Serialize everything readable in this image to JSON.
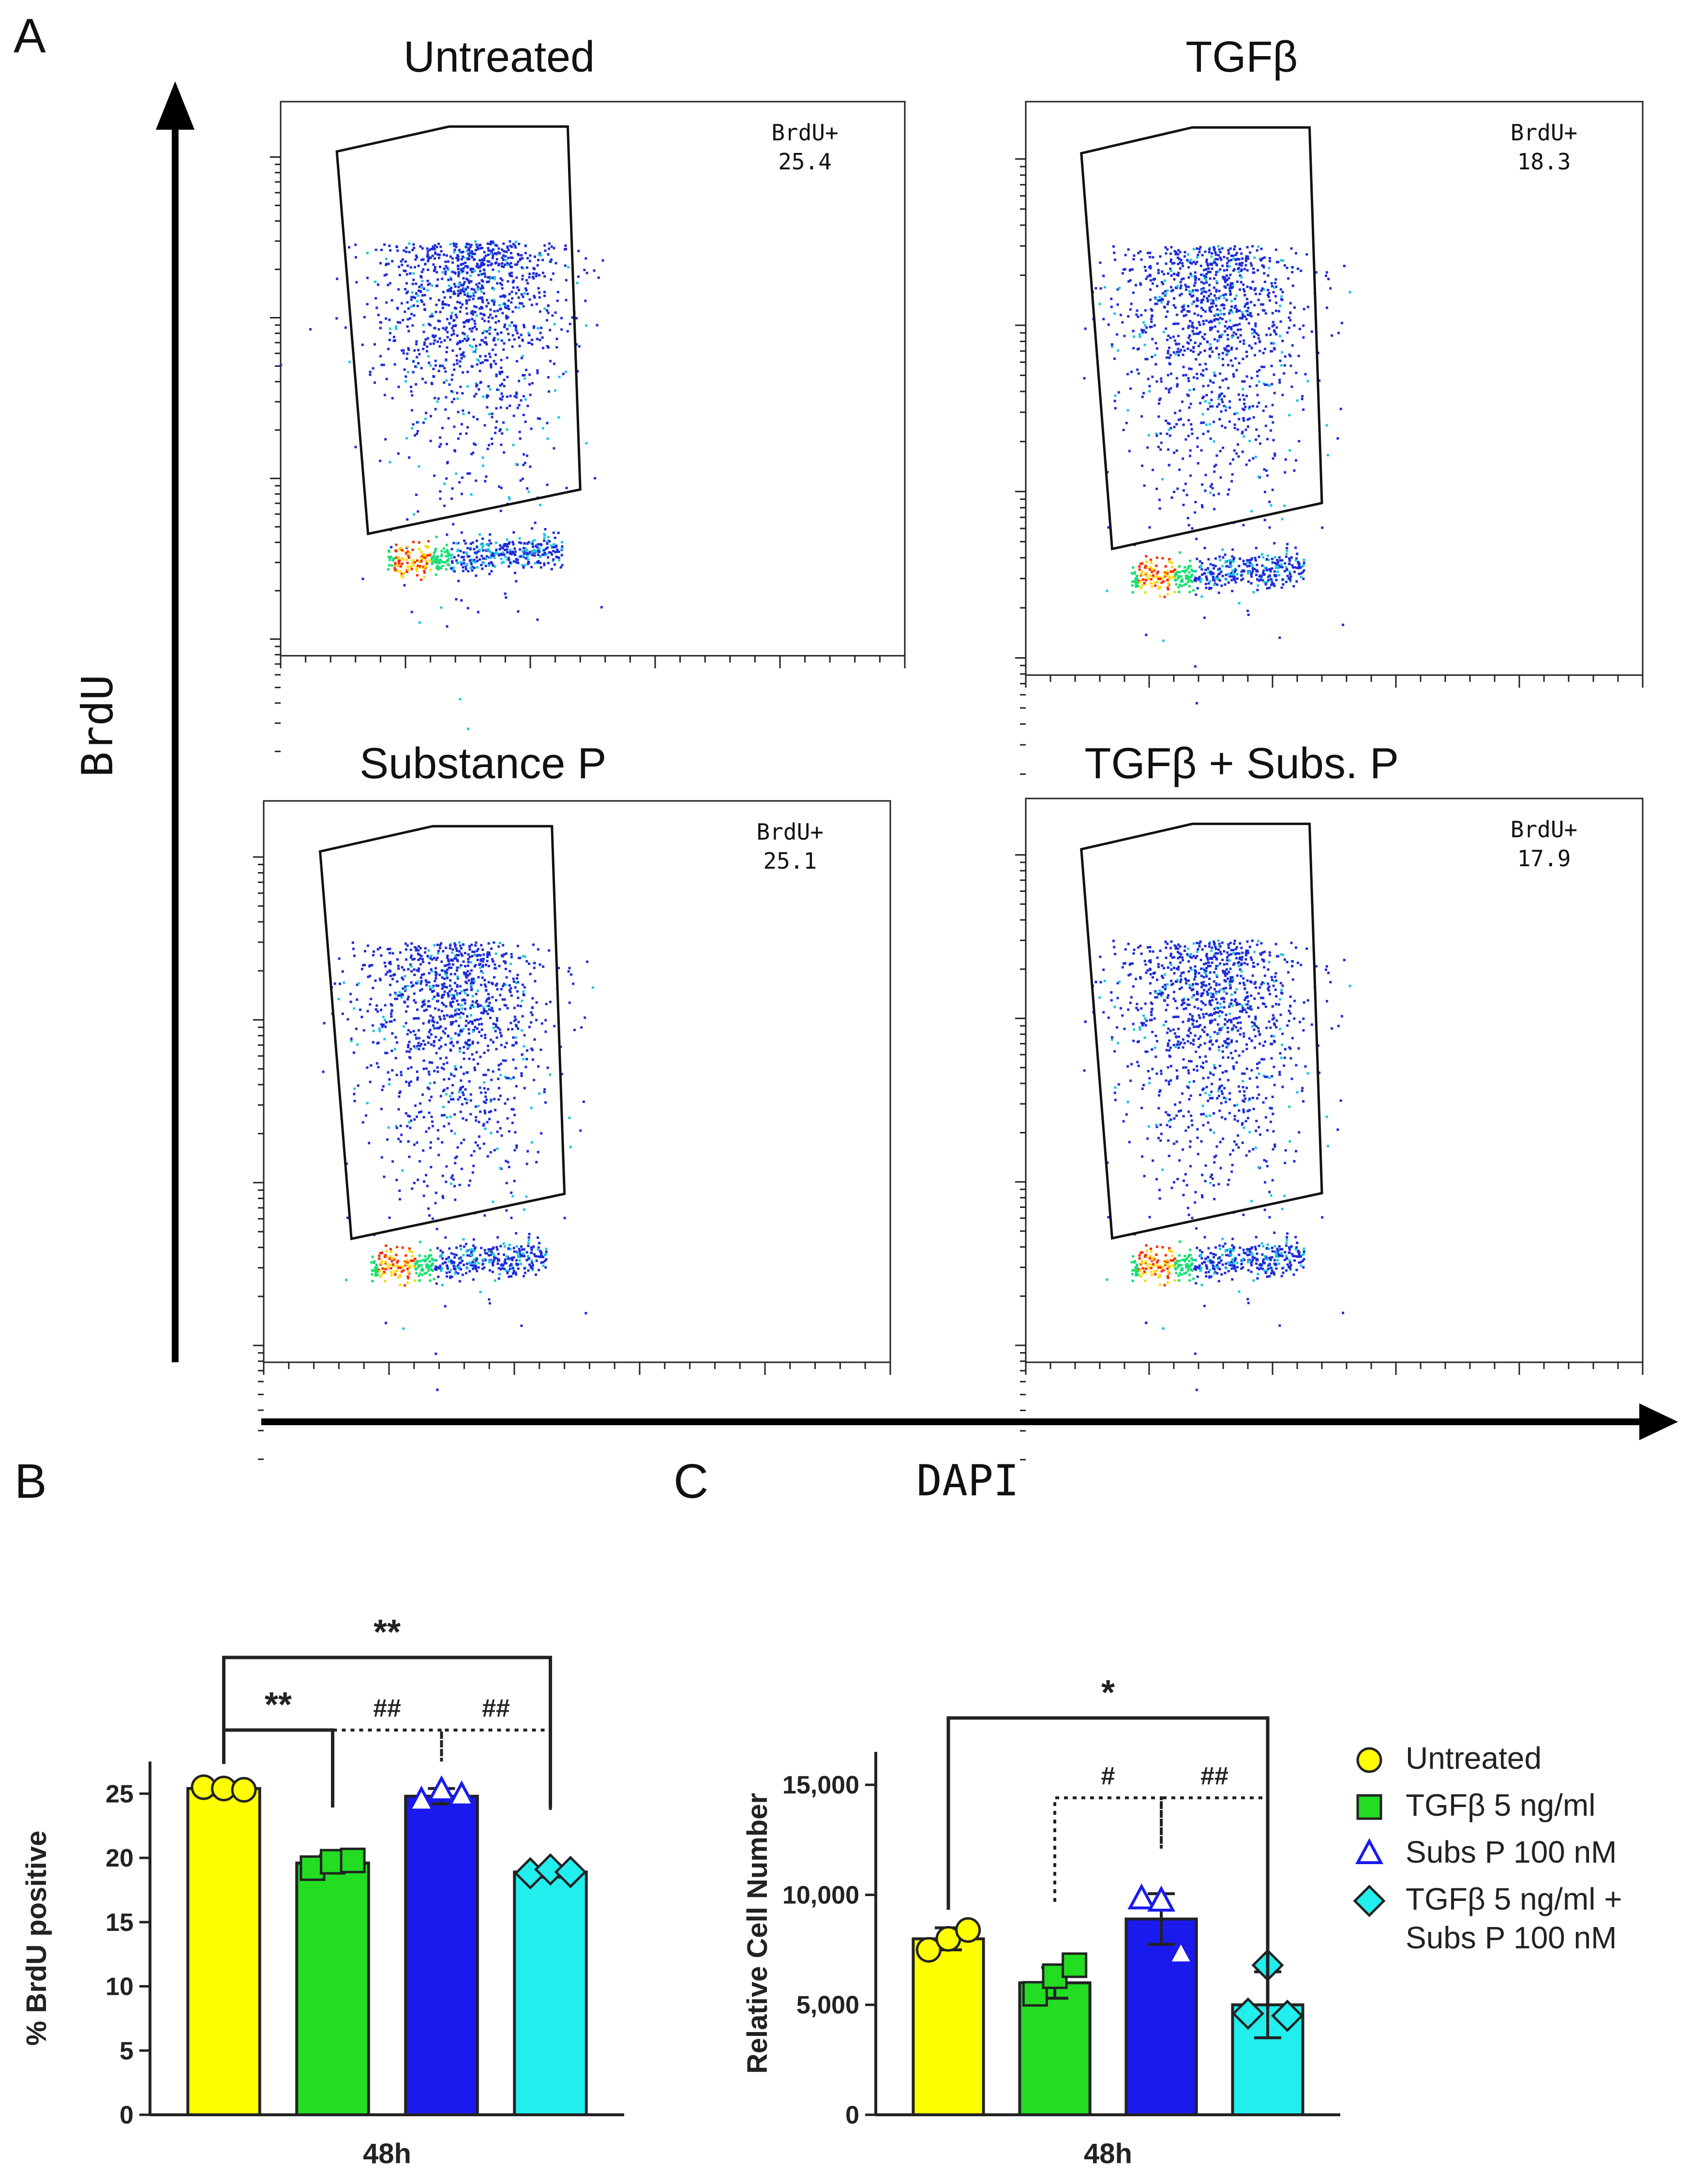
{
  "figure": {
    "panel_a_letter": "A",
    "panel_b_letter": "B",
    "panel_c_letter": "C"
  },
  "flow": {
    "x_axis_label": "DAPI",
    "y_axis_label": "BrdU",
    "gate_label": "BrdU+",
    "plots": [
      {
        "title": "Untreated",
        "gate_value": "25.4"
      },
      {
        "title": "TGFβ",
        "gate_value": "18.3"
      },
      {
        "title": "Substance P",
        "gate_value": "25.1"
      },
      {
        "title": "TGFβ + Subs. P",
        "gate_value": "17.9"
      }
    ]
  },
  "legend": {
    "items": [
      {
        "label": "Untreated",
        "marker": "circle",
        "color": "#ffff00"
      },
      {
        "label": "TGFβ 5 ng/ml",
        "marker": "square",
        "color": "#22dd22"
      },
      {
        "label": "Subs P 100 nM",
        "marker": "triangle-open",
        "color": "#1a1aee"
      },
      {
        "label": "TGFβ 5 ng/ml +",
        "label2": "Subs P 100 nM",
        "marker": "diamond",
        "color": "#22eeee"
      }
    ]
  },
  "chart_data": [
    {
      "id": "B",
      "type": "bar",
      "ylabel": "% BrdU positive",
      "xlabel": "48h",
      "ylim": [
        0,
        27.5
      ],
      "yticks": [
        0,
        5,
        10,
        15,
        20,
        25
      ],
      "ytick_labels": [
        "0",
        "5",
        "10",
        "15",
        "20",
        "25"
      ],
      "categories": [
        "Untreated",
        "TGFβ 5 ng/ml",
        "Subs P 100 nM",
        "TGFβ 5 ng/ml + Subs P 100 nM"
      ],
      "values": [
        25.4,
        19.6,
        24.8,
        18.9
      ],
      "errors": [
        0.5,
        0.6,
        0.6,
        0.4
      ],
      "colors": [
        "#ffff00",
        "#22dd22",
        "#1a1aee",
        "#22eeee"
      ],
      "markers": [
        "circle",
        "square",
        "triangle-open",
        "diamond"
      ],
      "points": [
        [
          25.5,
          25.4,
          25.3
        ],
        [
          19.2,
          19.7,
          19.8
        ],
        [
          24.4,
          25.2,
          24.8
        ],
        [
          18.8,
          19.1,
          18.9
        ]
      ],
      "comparisons": [
        {
          "from": 0,
          "to": 1,
          "label": "**",
          "style": "solid",
          "level": 1
        },
        {
          "from": 0,
          "to": 3,
          "label": "**",
          "style": "solid",
          "level": 2
        },
        {
          "from": 1,
          "to": 2,
          "label": "##",
          "style": "dotted",
          "level": 1
        },
        {
          "from": 2,
          "to": 3,
          "label": "##",
          "style": "dotted",
          "level": 1
        }
      ]
    },
    {
      "id": "C",
      "type": "bar",
      "ylabel": "Relative Cell Number",
      "xlabel": "48h",
      "ylim": [
        0,
        16500
      ],
      "yticks": [
        0,
        5000,
        10000,
        15000
      ],
      "ytick_labels": [
        "0",
        "5,000",
        "10,000",
        "15,000"
      ],
      "categories": [
        "Untreated",
        "TGFβ 5 ng/ml",
        "Subs P 100 nM",
        "TGFβ 5 ng/ml + Subs P 100 nM"
      ],
      "values": [
        8000,
        6000,
        8900,
        5000
      ],
      "errors": [
        500,
        700,
        1150,
        1500
      ],
      "colors": [
        "#ffff00",
        "#22dd22",
        "#1a1aee",
        "#22eeee"
      ],
      "markers": [
        "circle",
        "square",
        "triangle-open",
        "diamond"
      ],
      "points": [
        [
          7500,
          8000,
          8400
        ],
        [
          5500,
          6300,
          6800
        ],
        [
          9800,
          9700,
          7300
        ],
        [
          4600,
          6800,
          4500
        ]
      ],
      "comparisons": [
        {
          "from": 0,
          "to": 3,
          "label": "*",
          "style": "solid",
          "level": 2
        },
        {
          "from": 1,
          "to": 2,
          "label": "#",
          "style": "dotted",
          "level": 1
        },
        {
          "from": 2,
          "to": 3,
          "label": "##",
          "style": "dotted",
          "level": 1
        }
      ]
    }
  ]
}
